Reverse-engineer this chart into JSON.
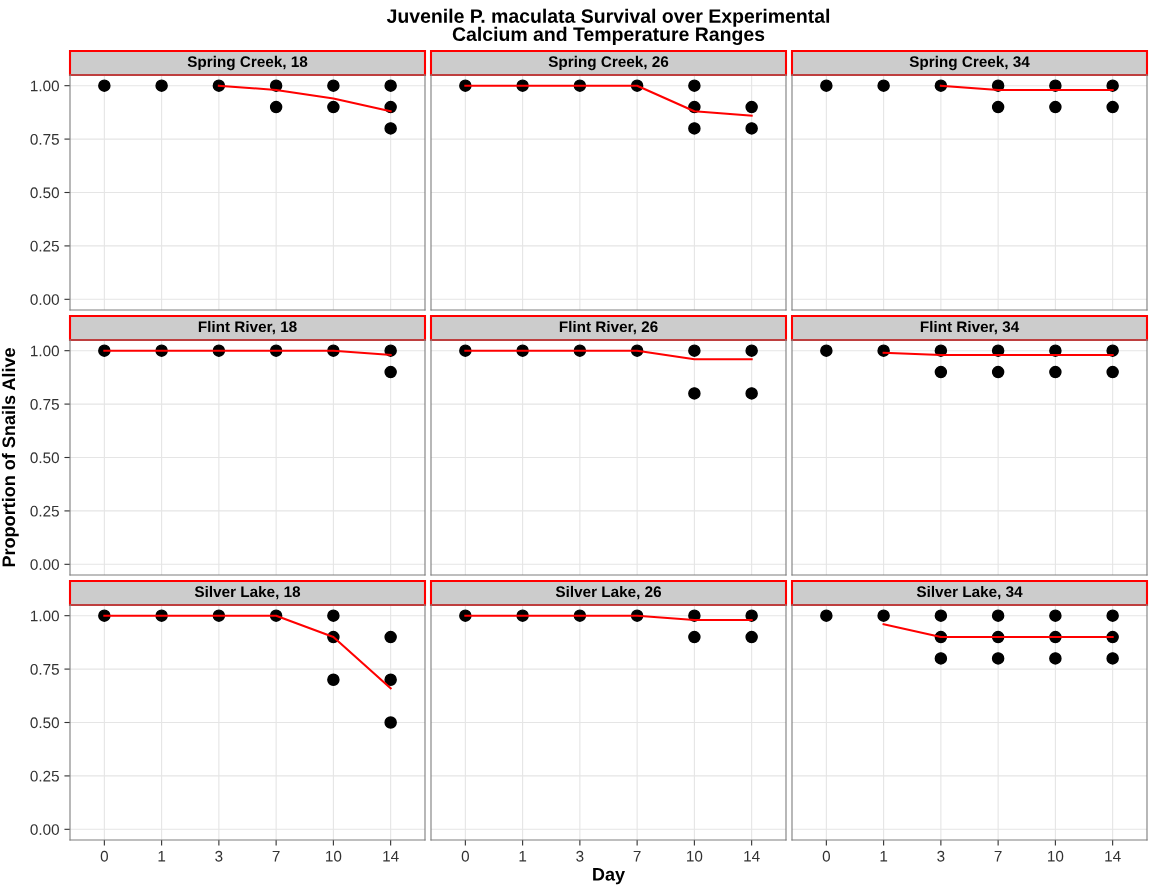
{
  "chart_data": [
    {
      "type": "scatter",
      "subtitle": "Spring Creek, 18",
      "categories": [
        "0",
        "1",
        "3",
        "7",
        "10",
        "14"
      ],
      "ylim": [
        -0.05,
        1.05
      ],
      "yticks": [
        {
          "value": 0,
          "label": "0.00"
        },
        {
          "value": 0.25,
          "label": "0.25"
        },
        {
          "value": 0.5,
          "label": "0.50"
        },
        {
          "value": 0.75,
          "label": "0.75"
        },
        {
          "value": 1,
          "label": "1.00"
        }
      ],
      "grid": true,
      "tick_labels": "y",
      "series": [
        {
          "marker": "circle",
          "color": "#000000",
          "x": [
            "0",
            "1",
            "3",
            "7",
            "7",
            "10",
            "10",
            "14",
            "14",
            "14"
          ],
          "values": [
            1,
            1,
            1,
            1,
            0.9,
            1,
            0.9,
            1,
            0.9,
            0.8
          ]
        },
        {
          "type": "line",
          "color": "#ff0000",
          "values": [
            null,
            null,
            1,
            0.98,
            0.94,
            0.88
          ]
        }
      ]
    },
    {
      "type": "scatter",
      "title": "Juvenile P. maculata Survival over Experimental\nCalcium and Temperature Ranges",
      "subtitle": "Spring Creek, 26",
      "categories": [
        "0",
        "1",
        "3",
        "7",
        "10",
        "14"
      ],
      "ylim": [
        -0.05,
        1.05
      ],
      "yticks": [
        0,
        0.25,
        0.5,
        0.75,
        1
      ],
      "grid": true,
      "tick_labels": false,
      "series": [
        {
          "marker": "circle",
          "color": "#000000",
          "x": [
            "0",
            "1",
            "3",
            "7",
            "10",
            "10",
            "10",
            "14",
            "14"
          ],
          "values": [
            1,
            1,
            1,
            1,
            1,
            0.9,
            0.8,
            0.9,
            0.8
          ]
        },
        {
          "type": "line",
          "color": "#ff0000",
          "values": [
            1,
            1,
            1,
            1,
            0.88,
            0.86
          ]
        }
      ]
    },
    {
      "type": "scatter",
      "subtitle": "Spring Creek, 34",
      "categories": [
        "0",
        "1",
        "3",
        "7",
        "10",
        "14"
      ],
      "ylim": [
        -0.05,
        1.05
      ],
      "yticks": [
        0,
        0.25,
        0.5,
        0.75,
        1
      ],
      "grid": true,
      "tick_labels": false,
      "series": [
        {
          "marker": "circle",
          "color": "#000000",
          "x": [
            "0",
            "1",
            "3",
            "7",
            "7",
            "10",
            "10",
            "14",
            "14"
          ],
          "values": [
            1,
            1,
            1,
            1,
            0.9,
            1,
            0.9,
            1,
            0.9
          ]
        },
        {
          "type": "line",
          "color": "#ff0000",
          "values": [
            null,
            null,
            1,
            0.98,
            0.98,
            0.98
          ]
        }
      ]
    },
    {
      "type": "scatter",
      "subtitle": "Flint River, 18",
      "ylabel": "Proportion of Snails Alive",
      "categories": [
        "0",
        "1",
        "3",
        "7",
        "10",
        "14"
      ],
      "ylim": [
        -0.05,
        1.05
      ],
      "yticks": [
        {
          "value": 0,
          "label": "0.00"
        },
        {
          "value": 0.25,
          "label": "0.25"
        },
        {
          "value": 0.5,
          "label": "0.50"
        },
        {
          "value": 0.75,
          "label": "0.75"
        },
        {
          "value": 1,
          "label": "1.00"
        }
      ],
      "grid": true,
      "tick_labels": "y",
      "series": [
        {
          "marker": "circle",
          "color": "#000000",
          "x": [
            "0",
            "1",
            "3",
            "7",
            "10",
            "14",
            "14"
          ],
          "values": [
            1,
            1,
            1,
            1,
            1,
            1,
            0.9
          ]
        },
        {
          "type": "line",
          "color": "#ff0000",
          "values": [
            1,
            1,
            1,
            1,
            1,
            0.98
          ]
        }
      ]
    },
    {
      "type": "scatter",
      "subtitle": "Flint River, 26",
      "categories": [
        "0",
        "1",
        "3",
        "7",
        "10",
        "14"
      ],
      "ylim": [
        -0.05,
        1.05
      ],
      "yticks": [
        0,
        0.25,
        0.5,
        0.75,
        1
      ],
      "grid": true,
      "tick_labels": false,
      "series": [
        {
          "marker": "circle",
          "color": "#000000",
          "x": [
            "0",
            "1",
            "3",
            "7",
            "10",
            "10",
            "14",
            "14"
          ],
          "values": [
            1,
            1,
            1,
            1,
            1,
            0.8,
            1,
            0.8
          ]
        },
        {
          "type": "line",
          "color": "#ff0000",
          "values": [
            1,
            1,
            1,
            1,
            0.96,
            0.96
          ]
        }
      ]
    },
    {
      "type": "scatter",
      "subtitle": "Flint River, 34",
      "categories": [
        "0",
        "1",
        "3",
        "7",
        "10",
        "14"
      ],
      "ylim": [
        -0.05,
        1.05
      ],
      "yticks": [
        0,
        0.25,
        0.5,
        0.75,
        1
      ],
      "grid": true,
      "tick_labels": false,
      "series": [
        {
          "marker": "circle",
          "color": "#000000",
          "x": [
            "0",
            "1",
            "3",
            "3",
            "7",
            "7",
            "10",
            "10",
            "14",
            "14"
          ],
          "values": [
            1,
            1,
            1,
            0.9,
            1,
            0.9,
            1,
            0.9,
            1,
            0.9
          ]
        },
        {
          "type": "line",
          "color": "#ff0000",
          "values": [
            null,
            0.99,
            0.98,
            0.98,
            0.98,
            0.98
          ]
        }
      ]
    },
    {
      "type": "scatter",
      "subtitle": "Silver Lake, 18",
      "categories": [
        "0",
        "1",
        "3",
        "7",
        "10",
        "14"
      ],
      "ylim": [
        -0.05,
        1.05
      ],
      "yticks": [
        {
          "value": 0,
          "label": "0.00"
        },
        {
          "value": 0.25,
          "label": "0.25"
        },
        {
          "value": 0.5,
          "label": "0.50"
        },
        {
          "value": 0.75,
          "label": "0.75"
        },
        {
          "value": 1,
          "label": "1.00"
        }
      ],
      "grid": true,
      "series": [
        {
          "marker": "circle",
          "color": "#000000",
          "x": [
            "0",
            "1",
            "3",
            "7",
            "10",
            "10",
            "10",
            "14",
            "14",
            "14"
          ],
          "values": [
            1,
            1,
            1,
            1,
            1,
            0.9,
            0.7,
            0.9,
            0.7,
            0.5
          ]
        },
        {
          "type": "line",
          "color": "#ff0000",
          "values": [
            1,
            1,
            1,
            1,
            0.9,
            0.66
          ]
        }
      ]
    },
    {
      "type": "scatter",
      "subtitle": "Silver Lake, 26",
      "xlabel": "Day",
      "categories": [
        "0",
        "1",
        "3",
        "7",
        "10",
        "14"
      ],
      "ylim": [
        -0.05,
        1.05
      ],
      "yticks": [
        0,
        0.25,
        0.5,
        0.75,
        1
      ],
      "grid": true,
      "tick_labels": "x",
      "series": [
        {
          "marker": "circle",
          "color": "#000000",
          "x": [
            "0",
            "1",
            "3",
            "7",
            "10",
            "10",
            "14",
            "14"
          ],
          "values": [
            1,
            1,
            1,
            1,
            1,
            0.9,
            1,
            0.9
          ]
        },
        {
          "type": "line",
          "color": "#ff0000",
          "values": [
            1,
            1,
            1,
            1,
            0.98,
            0.98
          ]
        }
      ]
    },
    {
      "type": "scatter",
      "subtitle": "Silver Lake, 34",
      "categories": [
        "0",
        "1",
        "3",
        "7",
        "10",
        "14"
      ],
      "ylim": [
        -0.05,
        1.05
      ],
      "yticks": [
        0,
        0.25,
        0.5,
        0.75,
        1
      ],
      "grid": true,
      "tick_labels": "x",
      "series": [
        {
          "marker": "circle",
          "color": "#000000",
          "x": [
            "0",
            "1",
            "3",
            "3",
            "3",
            "7",
            "7",
            "7",
            "10",
            "10",
            "10",
            "14",
            "14",
            "14"
          ],
          "values": [
            1,
            1,
            1,
            0.9,
            0.8,
            1,
            0.9,
            0.8,
            1,
            0.9,
            0.8,
            1,
            0.9,
            0.8
          ]
        },
        {
          "type": "line",
          "color": "#ff0000",
          "values": [
            null,
            0.96,
            0.9,
            0.9,
            0.9,
            0.9
          ]
        }
      ]
    }
  ]
}
